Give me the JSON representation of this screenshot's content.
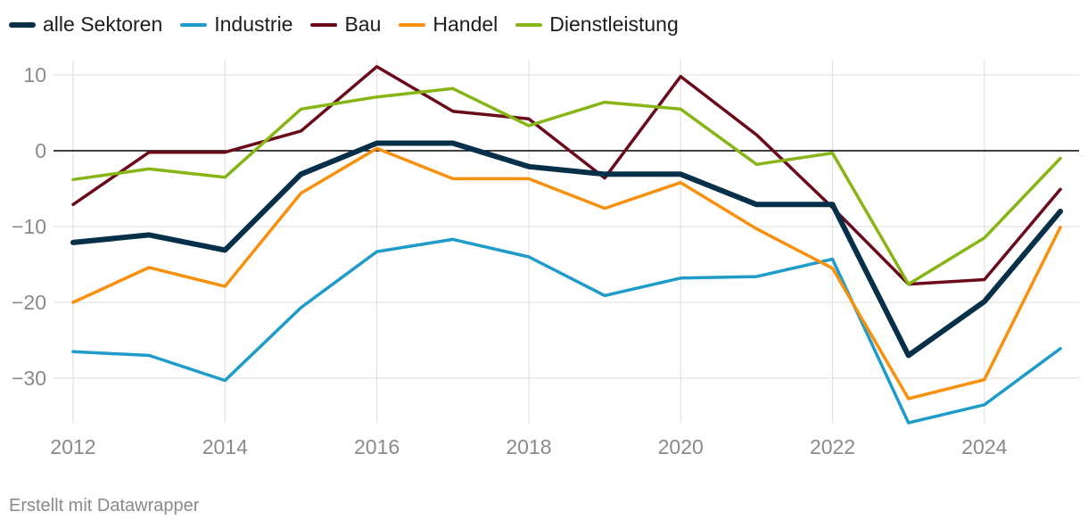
{
  "chart_data": {
    "type": "line",
    "title": "",
    "xlabel": "",
    "ylabel": "",
    "x": [
      2012,
      2013,
      2014,
      2015,
      2016,
      2017,
      2018,
      2019,
      2020,
      2021,
      2022,
      2023,
      2024,
      2025
    ],
    "ylim": [
      -36,
      12
    ],
    "y_ticks": [
      10,
      0,
      -10,
      -20,
      -30
    ],
    "y_tick_labels": [
      "10",
      "0",
      "−10",
      "−20",
      "−30"
    ],
    "x_ticks": [
      2012,
      2014,
      2016,
      2018,
      2020,
      2022,
      2024
    ],
    "x_tick_labels": [
      "2012",
      "2014",
      "2016",
      "2018",
      "2020",
      "2022",
      "2024"
    ],
    "grid": true,
    "legend_position": "top-left",
    "series": [
      {
        "name": "Industrie",
        "color": "#1e9bc8",
        "values": [
          -26.5,
          -27,
          -30.3,
          -20.7,
          -13.3,
          -11.7,
          -14,
          -19.1,
          -16.8,
          -16.6,
          -14.3,
          -35.9,
          -33.5,
          -26.1
        ]
      },
      {
        "name": "Bau",
        "color": "#6b0a1a",
        "values": [
          -7.1,
          -0.2,
          -0.2,
          2.6,
          11.1,
          5.2,
          4.2,
          -3.6,
          9.8,
          2.1,
          -7.5,
          -17.6,
          -17,
          -5.1
        ]
      },
      {
        "name": "Handel",
        "color": "#f7900d",
        "values": [
          -20,
          -15.4,
          -17.9,
          -5.6,
          0.3,
          -3.7,
          -3.7,
          -7.6,
          -4.2,
          -10.3,
          -15.5,
          -32.7,
          -30.2,
          -10.1
        ]
      },
      {
        "name": "Dienstleistung",
        "color": "#86b515",
        "values": [
          -3.8,
          -2.4,
          -3.5,
          5.5,
          7.1,
          8.2,
          3.3,
          6.4,
          5.5,
          -1.8,
          -0.3,
          -17.6,
          -11.5,
          -1
        ]
      },
      {
        "name": "alle Sektoren",
        "color": "#06304a",
        "values": [
          -12.1,
          -11.1,
          -13.1,
          -3.1,
          1,
          1,
          -2.1,
          -3.1,
          -3.1,
          -7.1,
          -7.1,
          -27,
          -19.9,
          -8
        ]
      }
    ]
  },
  "legend": [
    {
      "label": "alle Sektoren",
      "color": "#06304a",
      "thick": true
    },
    {
      "label": "Industrie",
      "color": "#1e9bc8",
      "thick": false
    },
    {
      "label": "Bau",
      "color": "#6b0a1a",
      "thick": false
    },
    {
      "label": "Handel",
      "color": "#f7900d",
      "thick": false
    },
    {
      "label": "Dienstleistung",
      "color": "#86b515",
      "thick": false
    }
  ],
  "footer": {
    "text": "Erstellt mit Datawrapper"
  }
}
